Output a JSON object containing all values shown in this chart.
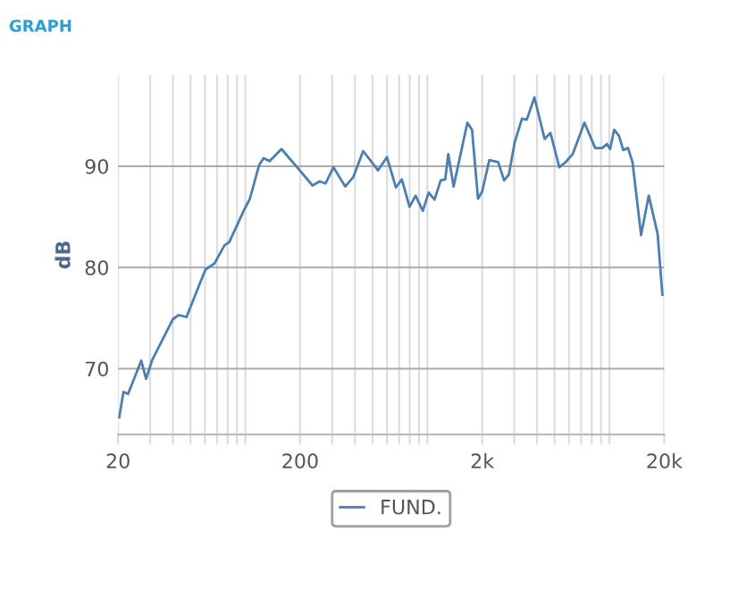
{
  "chart_data": {
    "type": "line",
    "title": "GRAPH",
    "ylabel": "dB",
    "log": "x",
    "xlim": [
      20,
      20000
    ],
    "ylim": [
      63.5,
      99
    ],
    "xticks": [
      20,
      {
        "value": 30,
        "label": null
      },
      {
        "value": 40,
        "label": null
      },
      {
        "value": 50,
        "label": null
      },
      {
        "value": 60,
        "label": null
      },
      {
        "value": 70,
        "label": null
      },
      {
        "value": 80,
        "label": null
      },
      {
        "value": 90,
        "label": null
      },
      {
        "value": 100,
        "label": null
      },
      200,
      {
        "value": 300,
        "label": null
      },
      {
        "value": 400,
        "label": null
      },
      {
        "value": 500,
        "label": null
      },
      {
        "value": 600,
        "label": null
      },
      {
        "value": 700,
        "label": null
      },
      {
        "value": 800,
        "label": null
      },
      {
        "value": 900,
        "label": null
      },
      {
        "value": 1000,
        "label": null
      },
      {
        "value": 2000,
        "label": "2k"
      },
      {
        "value": 3000,
        "label": null
      },
      {
        "value": 4000,
        "label": null
      },
      {
        "value": 5000,
        "label": null
      },
      {
        "value": 6000,
        "label": null
      },
      {
        "value": 7000,
        "label": null
      },
      {
        "value": 8000,
        "label": null
      },
      {
        "value": 9000,
        "label": null
      },
      {
        "value": 10000,
        "label": null
      },
      {
        "value": 20000,
        "label": "20k"
      }
    ],
    "yticks": [
      70,
      80,
      90
    ],
    "grid": true,
    "legend": "bottom",
    "marker": "none",
    "line_style": "solid",
    "series": [
      {
        "name": "FUND.",
        "color": "#4a7fb5",
        "x": [
          20.3,
          21.4,
          22.7,
          26.8,
          28.5,
          30.7,
          40,
          43.1,
          47.5,
          60.4,
          67.7,
          76.9,
          81.6,
          98.6,
          106,
          119,
          126,
          136,
          158,
          201,
          234,
          256,
          276,
          305,
          354,
          391,
          444,
          536,
          600,
          672,
          724,
          798,
          862,
          944,
          1017,
          1095,
          1183,
          1254,
          1303,
          1394,
          1659,
          1759,
          1898,
          2000,
          2188,
          2449,
          2641,
          2806,
          3021,
          3311,
          3516,
          3874,
          4406,
          4742,
          5309,
          5741,
          6284,
          7293,
          8356,
          9141,
          9706,
          10090,
          10620,
          11300,
          11910,
          12650,
          13400,
          14930,
          16450,
          18410,
          19550
        ],
        "values": [
          65.2,
          67.7,
          67.5,
          70.8,
          69.0,
          70.8,
          74.9,
          75.3,
          75.1,
          79.8,
          80.4,
          82.2,
          82.5,
          85.7,
          86.8,
          90.1,
          90.8,
          90.5,
          91.7,
          89.5,
          88.1,
          88.5,
          88.3,
          89.9,
          88.0,
          88.9,
          91.5,
          89.6,
          90.9,
          87.9,
          88.7,
          86.0,
          87.1,
          85.6,
          87.4,
          86.7,
          88.6,
          88.7,
          91.2,
          88.0,
          94.3,
          93.6,
          86.8,
          87.5,
          90.6,
          90.4,
          88.6,
          89.2,
          92.4,
          94.7,
          94.6,
          96.8,
          92.7,
          93.3,
          89.9,
          90.4,
          91.2,
          94.3,
          91.8,
          91.8,
          92.2,
          91.7,
          93.6,
          93.0,
          91.6,
          91.8,
          90.4,
          83.2,
          87.1,
          83.3,
          77.3
        ]
      }
    ]
  }
}
